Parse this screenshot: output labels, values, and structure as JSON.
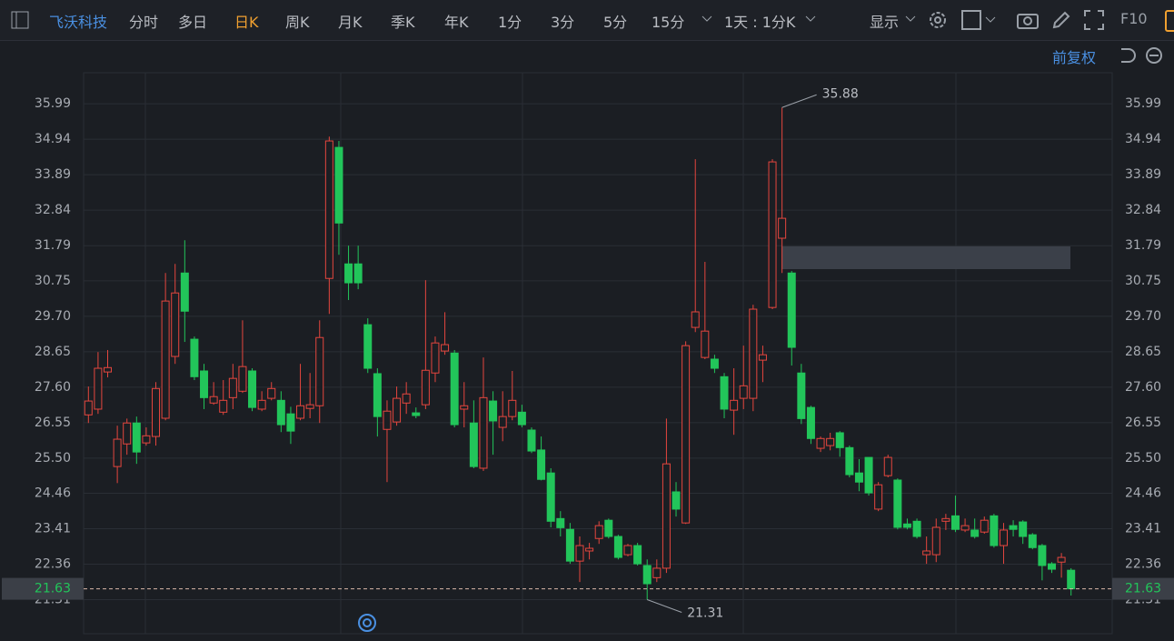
{
  "toolbar": {
    "stock": "飞沃科技",
    "periods": [
      "分时",
      "多日",
      "日K",
      "周K",
      "月K",
      "季K",
      "年K",
      "1分",
      "3分",
      "5分",
      "15分"
    ],
    "range": "1天 : 1分K",
    "display": "显示",
    "f10": "F10"
  },
  "adjust": "前复权",
  "chart_data": {
    "type": "candlestick",
    "up_color": "#e5463e",
    "down_color": "#22c55a",
    "grid": true,
    "ylim": [
      20.3,
      36.91
    ],
    "yticks": [
      35.99,
      34.94,
      33.89,
      32.84,
      31.79,
      30.75,
      {
        "value": 29.7,
        "label": "29.70"
      },
      28.65,
      {
        "value": 27.6,
        "label": "27.60"
      },
      26.55,
      {
        "value": 25.5,
        "label": "25.50"
      },
      24.46,
      23.41,
      22.36,
      21.31
    ],
    "open": [
      26.78,
      26.95,
      28.05,
      25.25,
      25.92,
      26.54,
      25.95,
      26.14,
      26.68,
      28.51,
      30.98,
      29.02,
      28.08,
      27.13,
      26.86,
      27.29,
      27.48,
      28.08,
      26.95,
      27.27,
      27.21,
      26.81,
      26.68,
      26.97,
      27.05,
      30.82,
      34.7,
      31.25,
      31.25,
      29.45,
      28.0,
      26.35,
      26.57,
      27.13,
      26.84,
      27.08,
      28.02,
      28.67,
      28.61,
      26.95,
      26.54,
      25.2,
      27.19,
      26.41,
      26.73,
      26.86,
      26.33,
      25.74,
      25.06,
      23.71,
      23.39,
      22.45,
      22.75,
      23.12,
      23.66,
      23.18,
      22.64,
      22.91,
      22.32,
      21.96,
      22.24,
      24.5,
      23.58,
      29.37,
      28.48,
      28.43,
      27.91,
      26.92,
      27.27,
      27.27,
      28.4,
      29.96,
      32.01,
      30.98,
      28.02,
      27.0,
      25.79,
      25.87,
      26.25,
      25.81,
      25.06,
      25.52,
      23.99,
      24.98,
      24.85,
      23.55,
      23.63,
      22.64,
      22.64,
      23.63,
      23.79,
      23.37,
      23.37,
      23.31,
      23.79,
      22.91,
      23.5,
      23.61,
      23.23,
      22.91,
      22.37,
      22.42,
      22.18
    ],
    "high": [
      27.62,
      28.64,
      28.7,
      26.46,
      26.67,
      26.73,
      26.41,
      27.75,
      30.98,
      31.25,
      31.95,
      29.1,
      28.29,
      27.75,
      27.81,
      28.29,
      29.58,
      28.16,
      27.48,
      27.75,
      27.48,
      27.02,
      28.29,
      28.02,
      29.58,
      35.02,
      34.89,
      31.79,
      31.79,
      29.64,
      28.16,
      27.21,
      27.62,
      27.75,
      27.0,
      30.77,
      29.1,
      29.82,
      28.7,
      27.75,
      27.21,
      28.48,
      27.48,
      27.48,
      28.08,
      27.08,
      26.41,
      26.14,
      25.2,
      23.93,
      23.58,
      23.18,
      22.99,
      23.63,
      23.71,
      23.23,
      22.96,
      22.99,
      22.5,
      22.5,
      26.67,
      24.79,
      28.96,
      34.35,
      31.31,
      28.56,
      28.02,
      28.16,
      28.83,
      30.04,
      28.83,
      34.35,
      35.88,
      31.04,
      28.29,
      27.05,
      26.14,
      26.25,
      26.3,
      25.87,
      25.47,
      25.52,
      24.79,
      25.6,
      24.9,
      23.71,
      23.71,
      23.18,
      23.71,
      23.85,
      24.39,
      23.71,
      23.71,
      23.77,
      23.85,
      23.58,
      23.66,
      23.66,
      23.28,
      22.96,
      22.42,
      22.69,
      22.24
    ],
    "low": [
      26.54,
      26.81,
      27.89,
      24.76,
      25.6,
      25.33,
      25.87,
      25.87,
      26.62,
      28.29,
      28.94,
      27.81,
      26.95,
      27.08,
      26.78,
      26.95,
      27.43,
      26.89,
      26.89,
      27.21,
      26.27,
      25.92,
      26.62,
      26.68,
      26.54,
      29.77,
      31.52,
      30.18,
      30.5,
      28.02,
      26.14,
      24.79,
      26.46,
      26.81,
      26.68,
      26.95,
      27.75,
      28.56,
      26.41,
      26.41,
      25.2,
      25.12,
      25.6,
      26.0,
      26.62,
      26.41,
      25.65,
      24.84,
      23.45,
      23.18,
      22.37,
      21.83,
      22.5,
      22.96,
      23.12,
      22.5,
      22.59,
      22.32,
      21.31,
      21.83,
      22.1,
      23.77,
      23.55,
      29.23,
      28.43,
      28.02,
      26.68,
      26.19,
      26.95,
      26.89,
      27.75,
      29.91,
      30.98,
      28.24,
      26.51,
      25.92,
      25.68,
      25.73,
      25.54,
      24.93,
      24.52,
      24.39,
      23.93,
      24.93,
      23.39,
      23.39,
      23.12,
      22.37,
      22.42,
      23.37,
      23.31,
      23.31,
      23.12,
      23.26,
      22.85,
      22.37,
      23.18,
      22.96,
      22.8,
      21.88,
      22.1,
      21.96,
      21.43
    ],
    "close": [
      27.19,
      28.16,
      28.18,
      26.06,
      26.54,
      25.68,
      26.16,
      27.56,
      30.15,
      30.39,
      29.85,
      27.91,
      27.29,
      27.32,
      27.21,
      27.86,
      28.21,
      27.0,
      27.21,
      27.56,
      26.49,
      26.3,
      27.05,
      27.08,
      29.07,
      34.89,
      32.46,
      30.69,
      30.69,
      28.16,
      26.73,
      26.89,
      27.27,
      27.4,
      26.76,
      28.1,
      28.91,
      28.86,
      26.49,
      27.05,
      25.25,
      27.29,
      26.6,
      26.73,
      27.21,
      26.49,
      25.71,
      24.87,
      23.63,
      23.44,
      22.45,
      22.91,
      22.83,
      23.5,
      23.18,
      22.56,
      22.91,
      22.37,
      21.78,
      22.24,
      25.33,
      23.99,
      28.83,
      29.83,
      29.26,
      28.16,
      26.95,
      27.21,
      27.64,
      29.91,
      28.56,
      34.27,
      32.6,
      28.78,
      26.67,
      26.08,
      26.08,
      26.08,
      25.81,
      25.01,
      24.79,
      24.47,
      24.71,
      25.52,
      23.45,
      23.45,
      23.18,
      22.75,
      23.45,
      23.71,
      23.39,
      23.5,
      23.18,
      23.66,
      22.91,
      23.37,
      23.39,
      23.18,
      22.85,
      22.32,
      22.21,
      22.56,
      21.63
    ]
  }
}
